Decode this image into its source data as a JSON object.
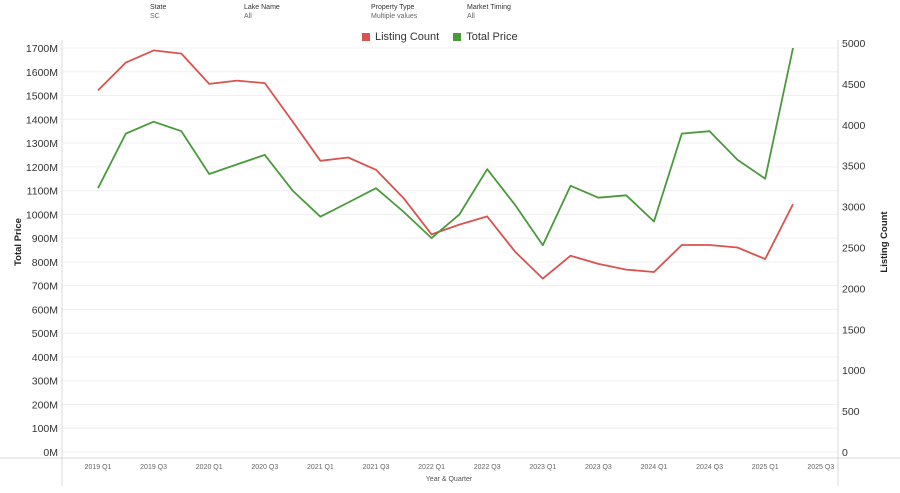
{
  "filters": [
    {
      "label": "State",
      "value": "SC"
    },
    {
      "label": "Lake Name",
      "value": "All"
    },
    {
      "label": "Property Type",
      "value": "Multiple values"
    },
    {
      "label": "Market Timing",
      "value": "All"
    }
  ],
  "chart_data": {
    "type": "line",
    "xlabel": "Year & Quarter",
    "ylabel_left": "Total Price",
    "ylabel_right": "Listing Count",
    "categories": [
      "2019 Q1",
      "2019 Q2",
      "2019 Q3",
      "2019 Q4",
      "2020 Q1",
      "2020 Q2",
      "2020 Q3",
      "2020 Q4",
      "2021 Q1",
      "2021 Q2",
      "2021 Q3",
      "2021 Q4",
      "2022 Q1",
      "2022 Q2",
      "2022 Q3",
      "2022 Q4",
      "2023 Q1",
      "2023 Q2",
      "2023 Q3",
      "2023 Q4",
      "2024 Q1",
      "2024 Q2",
      "2024 Q3",
      "2024 Q4",
      "2025 Q1",
      "2025 Q2",
      "2025 Q3"
    ],
    "x_tick_labels": [
      "2019 Q1",
      "2019 Q3",
      "2020 Q1",
      "2020 Q3",
      "2021 Q1",
      "2021 Q3",
      "2022 Q1",
      "2022 Q3",
      "2023 Q1",
      "2023 Q3",
      "2024 Q1",
      "2024 Q3",
      "2025 Q1",
      "2025 Q3"
    ],
    "left_axis": {
      "ylim": [
        0,
        1700000000
      ],
      "ticks": [
        "0M",
        "100M",
        "200M",
        "300M",
        "400M",
        "500M",
        "600M",
        "700M",
        "800M",
        "900M",
        "1000M",
        "1100M",
        "1200M",
        "1300M",
        "1400M",
        "1500M",
        "1600M",
        "1700M"
      ]
    },
    "right_axis": {
      "ylim": [
        0,
        5000
      ],
      "ticks": [
        "0",
        "500",
        "1000",
        "1500",
        "2000",
        "2500",
        "3000",
        "3500",
        "4000",
        "4500",
        "5000"
      ]
    },
    "series": [
      {
        "name": "Listing Count",
        "axis": "right",
        "color": "#d9534f",
        "values": [
          4420,
          4760,
          4910,
          4870,
          4500,
          4540,
          4510,
          4040,
          3560,
          3600,
          3450,
          3100,
          2660,
          2780,
          2880,
          2450,
          2120,
          2400,
          2300,
          2230,
          2200,
          2530,
          2530,
          2500,
          2360,
          3030,
          null
        ]
      },
      {
        "name": "Total Price",
        "axis": "left",
        "color": "#4a9a3c",
        "values": [
          1110000000,
          1340000000,
          1390000000,
          1350000000,
          1170000000,
          1210000000,
          1250000000,
          1100000000,
          990000000,
          1050000000,
          1110000000,
          1010000000,
          900000000,
          1000000000,
          1190000000,
          1040000000,
          870000000,
          1120000000,
          1070000000,
          1080000000,
          970000000,
          1340000000,
          1350000000,
          1230000000,
          1150000000,
          1700000000,
          null
        ]
      }
    ],
    "legend": "top-center"
  }
}
